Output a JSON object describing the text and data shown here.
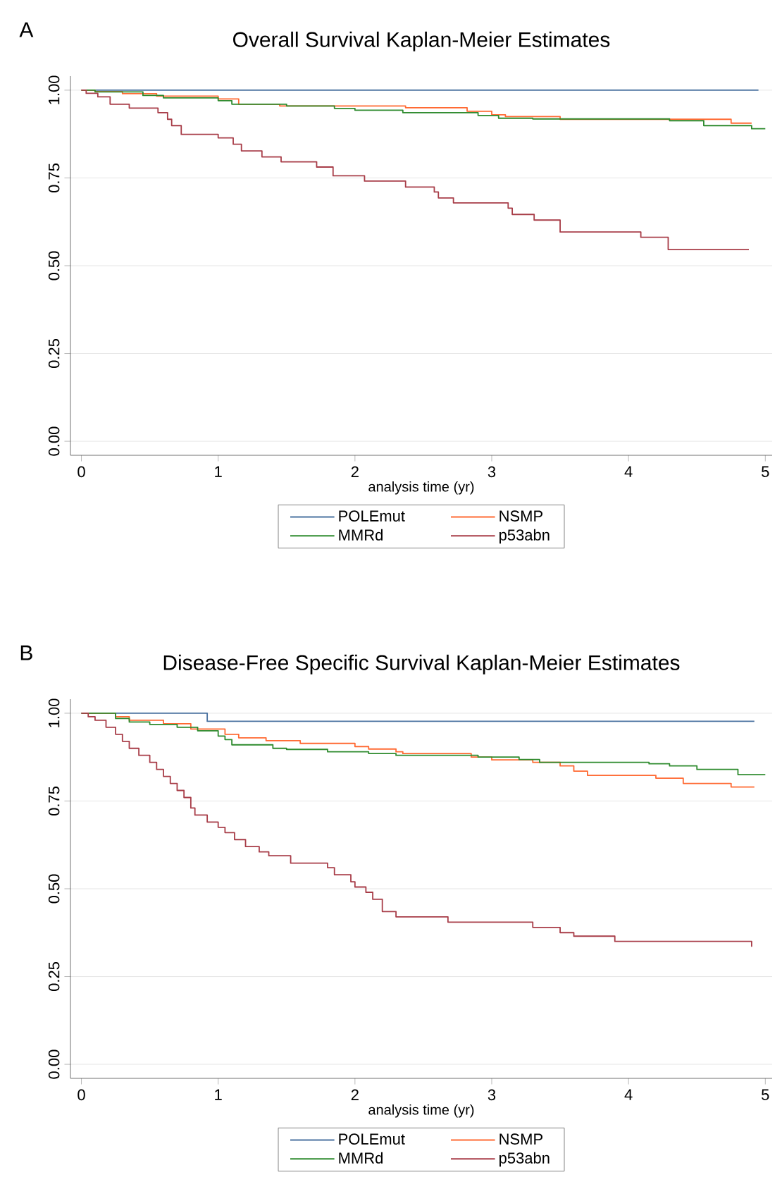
{
  "chart_data": [
    {
      "type": "step",
      "title": "Overall Survival Kaplan-Meier Estimates",
      "xlabel": "analysis time (yr)",
      "annotations": [
        "A"
      ],
      "xlim": [
        -0.08,
        5.05
      ],
      "xticks": [
        0,
        1,
        2,
        3,
        4,
        5
      ],
      "ylim": [
        -0.04,
        1.04
      ],
      "yticks": [
        {
          "value": 0,
          "label": "0.00"
        },
        {
          "value": 0.25,
          "label": "0.25"
        },
        {
          "value": 0.5,
          "label": "0.50"
        },
        {
          "value": 0.75,
          "label": "0.75"
        },
        {
          "value": 1,
          "label": "1.00"
        }
      ],
      "grid": "y",
      "legend": "bottom",
      "series": [
        {
          "name": "POLEmut",
          "color": "#4a72a0",
          "x": [
            0,
            4.95
          ],
          "values": [
            1,
            1
          ]
        },
        {
          "name": "NSMP",
          "color": "#ff6a33",
          "x": [
            0,
            0.1,
            0.3,
            0.55,
            1.0,
            1.15,
            1.45,
            2.37,
            2.82,
            3.0,
            3.1,
            3.5,
            4.75,
            4.9
          ],
          "values": [
            1,
            0.996,
            0.99,
            0.983,
            0.975,
            0.96,
            0.955,
            0.95,
            0.94,
            0.93,
            0.925,
            0.917,
            0.906,
            0.906
          ]
        },
        {
          "name": "MMRd",
          "color": "#2e8b2e",
          "x": [
            0,
            0.1,
            0.45,
            0.6,
            1.0,
            1.1,
            1.5,
            1.85,
            2.0,
            2.35,
            2.9,
            3.05,
            3.3,
            4.3,
            4.55,
            4.9,
            5.0
          ],
          "values": [
            1,
            0.995,
            0.985,
            0.978,
            0.97,
            0.96,
            0.955,
            0.948,
            0.943,
            0.936,
            0.928,
            0.92,
            0.918,
            0.913,
            0.899,
            0.89,
            0.89
          ]
        },
        {
          "name": "p53abn",
          "color": "#a83d48",
          "x": [
            0,
            0.035,
            0.12,
            0.21,
            0.35,
            0.56,
            0.63,
            0.66,
            0.73,
            1.0,
            1.11,
            1.17,
            1.32,
            1.46,
            1.72,
            1.84,
            2.07,
            2.37,
            2.58,
            2.61,
            2.72,
            3.12,
            3.15,
            3.31,
            3.5,
            4.09,
            4.29,
            4.88
          ],
          "values": [
            1,
            0.991,
            0.981,
            0.96,
            0.949,
            0.936,
            0.917,
            0.899,
            0.874,
            0.864,
            0.846,
            0.827,
            0.81,
            0.796,
            0.781,
            0.756,
            0.741,
            0.724,
            0.71,
            0.693,
            0.679,
            0.664,
            0.646,
            0.63,
            0.596,
            0.581,
            0.546,
            0.546
          ]
        }
      ]
    },
    {
      "type": "step",
      "title": "Disease-Free Specific Survival Kaplan-Meier Estimates",
      "xlabel": "analysis time (yr)",
      "annotations": [
        "B"
      ],
      "xlim": [
        -0.08,
        5.05
      ],
      "xticks": [
        0,
        1,
        2,
        3,
        4,
        5
      ],
      "ylim": [
        -0.04,
        1.04
      ],
      "yticks": [
        {
          "value": 0,
          "label": "0.00"
        },
        {
          "value": 0.25,
          "label": "0.25"
        },
        {
          "value": 0.5,
          "label": "0.50"
        },
        {
          "value": 0.75,
          "label": "0.75"
        },
        {
          "value": 1,
          "label": "1.00"
        }
      ],
      "grid": "y",
      "legend": "bottom",
      "series": [
        {
          "name": "POLEmut",
          "color": "#4a72a0",
          "x": [
            0,
            0.92,
            4.92
          ],
          "values": [
            1,
            0.977,
            0.977
          ]
        },
        {
          "name": "NSMP",
          "color": "#ff6a33",
          "x": [
            0,
            0.25,
            0.35,
            0.6,
            0.8,
            1.05,
            1.15,
            1.35,
            1.6,
            2.0,
            2.1,
            2.3,
            2.35,
            2.85,
            3.0,
            3.3,
            3.5,
            3.6,
            3.7,
            4.2,
            4.4,
            4.75,
            4.92
          ],
          "values": [
            1,
            0.99,
            0.98,
            0.97,
            0.955,
            0.94,
            0.93,
            0.922,
            0.914,
            0.905,
            0.898,
            0.89,
            0.885,
            0.875,
            0.867,
            0.86,
            0.85,
            0.835,
            0.823,
            0.815,
            0.8,
            0.79,
            0.79
          ]
        },
        {
          "name": "MMRd",
          "color": "#2e8b2e",
          "x": [
            0,
            0.25,
            0.35,
            0.5,
            0.7,
            0.85,
            1.0,
            1.05,
            1.1,
            1.4,
            1.5,
            1.8,
            2.1,
            2.3,
            2.9,
            3.2,
            3.35,
            4.15,
            4.3,
            4.5,
            4.8,
            5.0
          ],
          "values": [
            1,
            0.985,
            0.975,
            0.968,
            0.96,
            0.95,
            0.935,
            0.925,
            0.91,
            0.9,
            0.897,
            0.89,
            0.885,
            0.88,
            0.875,
            0.868,
            0.86,
            0.856,
            0.85,
            0.84,
            0.825,
            0.825
          ]
        },
        {
          "name": "p53abn",
          "color": "#a83d48",
          "x": [
            0,
            0.05,
            0.1,
            0.18,
            0.25,
            0.3,
            0.35,
            0.42,
            0.5,
            0.55,
            0.6,
            0.65,
            0.7,
            0.75,
            0.8,
            0.83,
            0.92,
            1.0,
            1.05,
            1.12,
            1.2,
            1.3,
            1.37,
            1.53,
            1.8,
            1.85,
            1.97,
            2.0,
            2.08,
            2.13,
            2.2,
            2.3,
            2.68,
            3.3,
            3.5,
            3.6,
            3.9,
            4.9
          ],
          "values": [
            1,
            0.99,
            0.98,
            0.96,
            0.94,
            0.92,
            0.9,
            0.88,
            0.86,
            0.84,
            0.82,
            0.8,
            0.78,
            0.76,
            0.73,
            0.71,
            0.69,
            0.675,
            0.66,
            0.64,
            0.62,
            0.605,
            0.594,
            0.573,
            0.56,
            0.54,
            0.52,
            0.505,
            0.49,
            0.47,
            0.435,
            0.42,
            0.405,
            0.39,
            0.375,
            0.365,
            0.35,
            0.335
          ]
        }
      ]
    }
  ]
}
